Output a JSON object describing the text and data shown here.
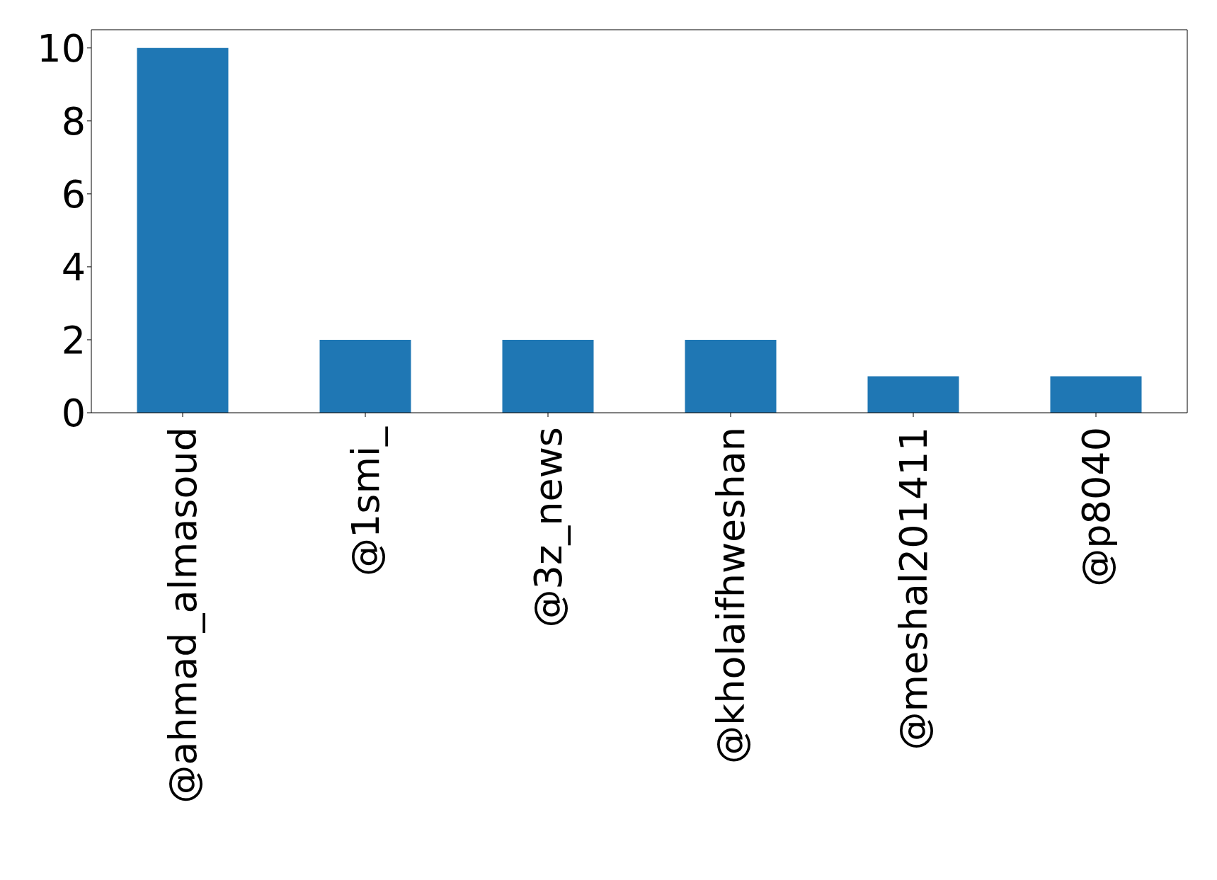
{
  "chart_data": {
    "type": "bar",
    "categories": [
      "@ahmad_almasoud",
      "@1smi_",
      "@3z_news",
      "@kholaifhweshan",
      "@meshal201411",
      "@p8040"
    ],
    "values": [
      10,
      2,
      2,
      2,
      1,
      1
    ],
    "color": "#1f77b4",
    "ylim": [
      0,
      10.5
    ],
    "yticks": [
      0,
      2,
      4,
      6,
      8,
      10
    ]
  }
}
